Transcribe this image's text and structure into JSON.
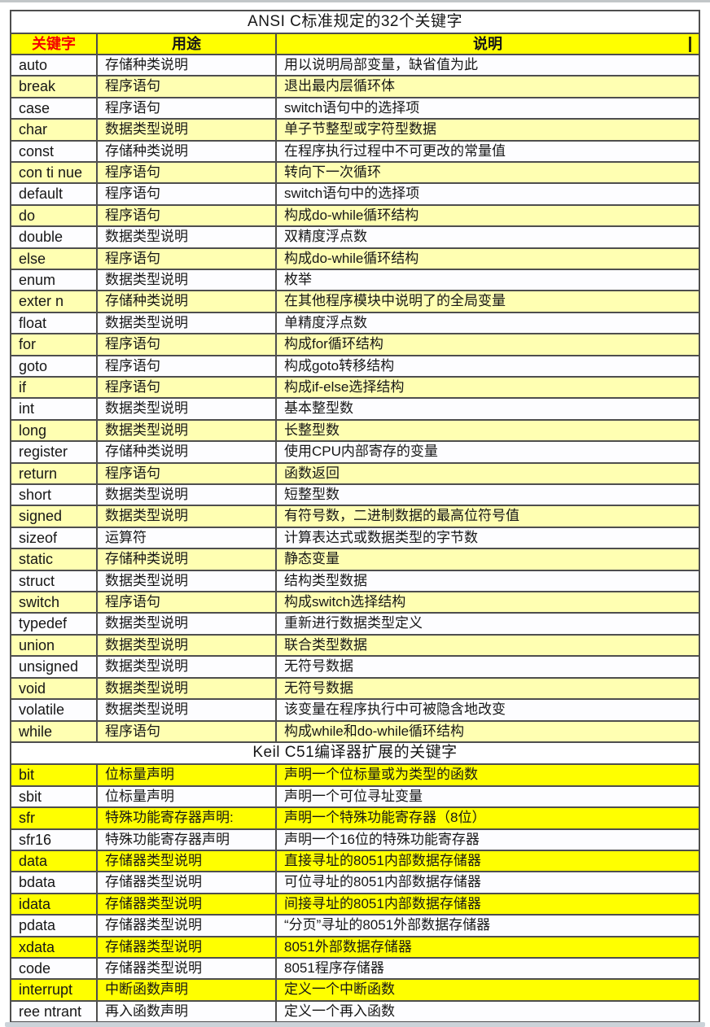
{
  "page": {
    "ansi_section_title": "ANSI C标准规定的32个关键字",
    "keil_section_title": "Keil C51编译器扩展的关键字"
  },
  "table": {
    "headers": {
      "keyword": "关键字",
      "usage": "用途",
      "description": "说明"
    },
    "cursor_mark": "|"
  },
  "ansi_rows": [
    {
      "kw": "auto",
      "use": "存储种类说明",
      "desc": "用以说明局部变量，缺省值为此"
    },
    {
      "kw": "break",
      "use": "程序语句",
      "desc": "退出最内层循环体"
    },
    {
      "kw": "case",
      "use": "程序语句",
      "desc": "switch语句中的选择项"
    },
    {
      "kw": "char",
      "use": "数据类型说明",
      "desc": "单子节整型或字符型数据"
    },
    {
      "kw": "const",
      "use": "存储种类说明",
      "desc": "在程序执行过程中不可更改的常量值"
    },
    {
      "kw": "con ti nue",
      "use": "程序语句",
      "desc": "转向下一次循环"
    },
    {
      "kw": "default",
      "use": "程序语句",
      "desc": "switch语句中的选择项"
    },
    {
      "kw": "do",
      "use": "程序语句",
      "desc": "构成do-while循环结构"
    },
    {
      "kw": "double",
      "use": "数据类型说明",
      "desc": "双精度浮点数"
    },
    {
      "kw": "else",
      "use": "程序语句",
      "desc": "构成do-while循环结构"
    },
    {
      "kw": "enum",
      "use": "数据类型说明",
      "desc": "枚举"
    },
    {
      "kw": "exter n",
      "use": "存储种类说明",
      "desc": "在其他程序模块中说明了的全局变量"
    },
    {
      "kw": "float",
      "use": "数据类型说明",
      "desc": "单精度浮点数"
    },
    {
      "kw": "for",
      "use": "程序语句",
      "desc": "构成for循环结构"
    },
    {
      "kw": "goto",
      "use": "程序语句",
      "desc": "构成goto转移结构"
    },
    {
      "kw": "if",
      "use": "程序语句",
      "desc": "构成if-else选择结构"
    },
    {
      "kw": "int",
      "use": "数据类型说明",
      "desc": "基本整型数"
    },
    {
      "kw": "long",
      "use": "数据类型说明",
      "desc": "长整型数"
    },
    {
      "kw": "register",
      "use": "存储种类说明",
      "desc": "使用CPU内部寄存的变量"
    },
    {
      "kw": "return",
      "use": "程序语句",
      "desc": "函数返回"
    },
    {
      "kw": "short",
      "use": "数据类型说明",
      "desc": "短整型数"
    },
    {
      "kw": "signed",
      "use": "数据类型说明",
      "desc": "有符号数，二进制数据的最高位符号值"
    },
    {
      "kw": "sizeof",
      "use": "运算符",
      "desc": "计算表达式或数据类型的字节数"
    },
    {
      "kw": "static",
      "use": "存储种类说明",
      "desc": "静态变量"
    },
    {
      "kw": "struct",
      "use": "数据类型说明",
      "desc": "结构类型数据"
    },
    {
      "kw": "switch",
      "use": "程序语句",
      "desc": "构成switch选择结构"
    },
    {
      "kw": "typedef",
      "use": "数据类型说明",
      "desc": "重新进行数据类型定义"
    },
    {
      "kw": "union",
      "use": "数据类型说明",
      "desc": "联合类型数据"
    },
    {
      "kw": "unsigned",
      "use": "数据类型说明",
      "desc": "无符号数据"
    },
    {
      "kw": "void",
      "use": "数据类型说明",
      "desc": "无符号数据"
    },
    {
      "kw": "volatile",
      "use": "数据类型说明",
      "desc": "该变量在程序执行中可被隐含地改变"
    },
    {
      "kw": "while",
      "use": "程序语句",
      "desc": "构成while和do-while循环结构"
    }
  ],
  "keil_rows": [
    {
      "kw": "bit",
      "use": "位标量声明",
      "desc": "声明一个位标量或为类型的函数"
    },
    {
      "kw": "sbit",
      "use": "位标量声明",
      "desc": "声明一个可位寻址变量"
    },
    {
      "kw": "sfr",
      "use": "特殊功能寄存器声明:",
      "desc": "声明一个特殊功能寄存器（8位）"
    },
    {
      "kw": "sfr16",
      "use": "特殊功能寄存器声明",
      "desc": "声明一个16位的特殊功能寄存器"
    },
    {
      "kw": "data",
      "use": "存储器类型说明",
      "desc": "直接寻址的8051内部数据存储器"
    },
    {
      "kw": "bdata",
      "use": "存储器类型说明",
      "desc": "可位寻址的8051内部数据存储器"
    },
    {
      "kw": "idata",
      "use": "存储器类型说明",
      "desc": "间接寻址的8051内部数据存储器"
    },
    {
      "kw": "pdata",
      "use": "存储器类型说明",
      "desc": "“分页”寻址的8051外部数据存储器"
    },
    {
      "kw": "xdata",
      "use": "存储器类型说明",
      "desc": "8051外部数据存储器"
    },
    {
      "kw": "code",
      "use": "存储器类型说明",
      "desc": "8051程序存储器"
    },
    {
      "kw": "interrupt",
      "use": "中断函数声明",
      "desc": "定义一个中断函数"
    },
    {
      "kw": "ree ntrant",
      "use": "再入函数声明",
      "desc": "定义一个再入函数"
    }
  ],
  "colors": {
    "header_yellow": "#ffff00",
    "ansi_stripe_yellow": "#ffffb2",
    "keil_stripe_yellow": "#ffff00",
    "keyword_header_red": "#f40000",
    "border_gray": "#4e4e4e"
  }
}
